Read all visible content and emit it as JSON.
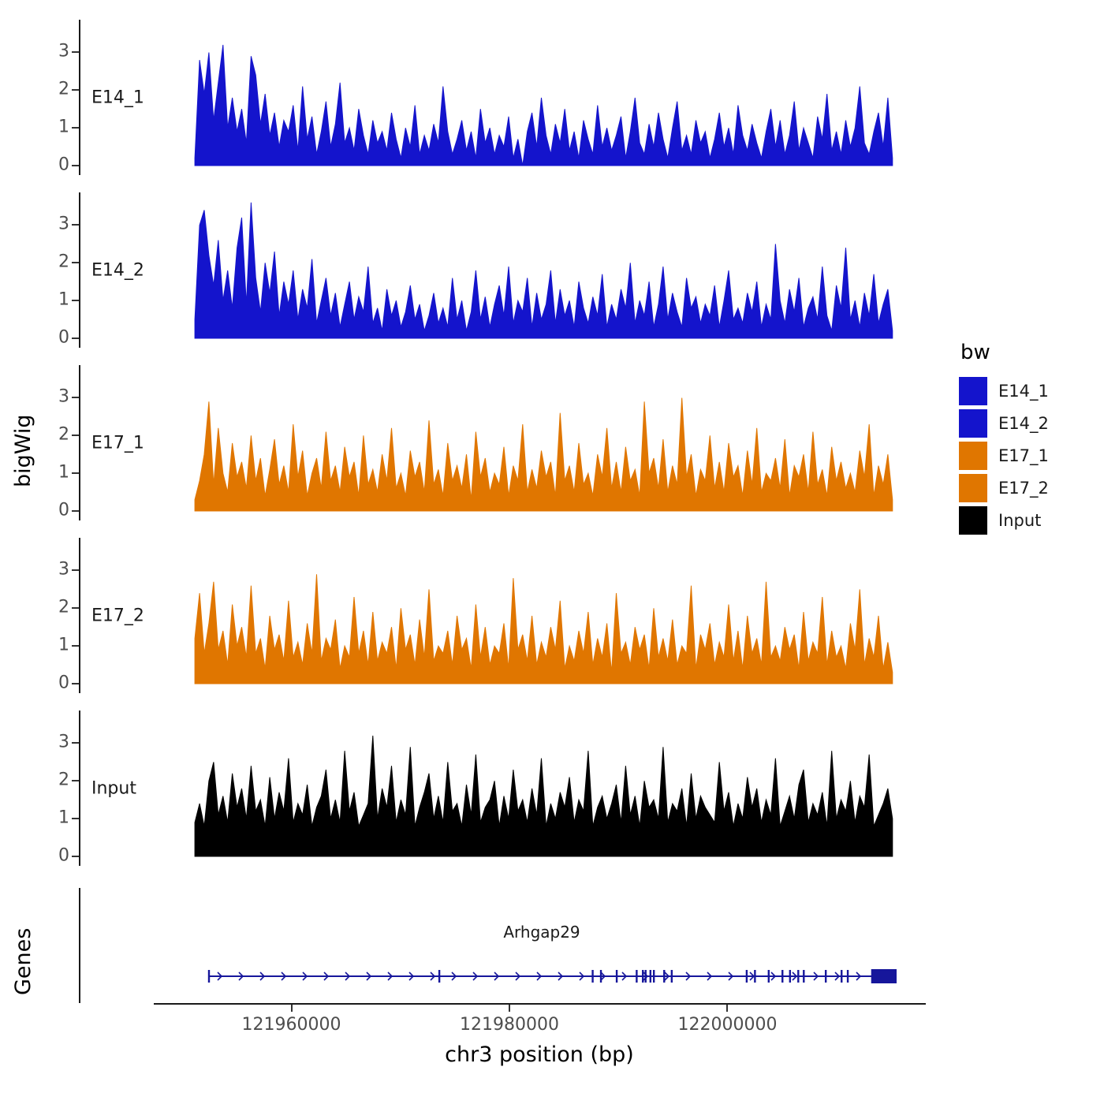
{
  "figure": {
    "y_axis_title_tracks": "bigWig",
    "y_axis_title_genes": "Genes",
    "x_axis_title": "chr3 position (bp)"
  },
  "colors": {
    "blue": "#1414CC",
    "orange": "#E07600",
    "black": "#000000",
    "gene": "#16169B",
    "axis_text": "#4d4d4d"
  },
  "chart_data": {
    "type": "area",
    "title": "",
    "subtitle": "",
    "region": {
      "chrom": "chr3",
      "start": 121951000,
      "end": 122015000
    },
    "x_ticks": [
      121960000,
      121980000,
      122000000
    ],
    "y_ticks": [
      0,
      1,
      2,
      3
    ],
    "ylim": [
      0,
      3.7
    ],
    "grid": false,
    "legend": {
      "title": "bw",
      "position": "right",
      "entries": [
        {
          "label": "E14_1",
          "color": "#1414CC"
        },
        {
          "label": "E14_2",
          "color": "#1414CC"
        },
        {
          "label": "E17_1",
          "color": "#E07600"
        },
        {
          "label": "E17_2",
          "color": "#E07600"
        },
        {
          "label": "Input",
          "color": "#000000"
        }
      ]
    },
    "tracks": [
      {
        "label": "E14_1",
        "color": "#1414CC",
        "values": [
          0.2,
          2.8,
          1.9,
          3.0,
          1.2,
          2.2,
          3.2,
          1.0,
          1.8,
          0.9,
          1.5,
          0.6,
          2.9,
          2.4,
          1.1,
          1.9,
          0.8,
          1.4,
          0.5,
          1.2,
          0.9,
          1.6,
          0.4,
          2.1,
          0.7,
          1.3,
          0.3,
          0.9,
          1.7,
          0.5,
          1.1,
          2.2,
          0.6,
          1.0,
          0.4,
          1.5,
          0.8,
          0.3,
          1.2,
          0.6,
          0.9,
          0.4,
          1.4,
          0.7,
          0.2,
          1.0,
          0.5,
          1.6,
          0.3,
          0.8,
          0.4,
          1.1,
          0.6,
          2.1,
          0.9,
          0.3,
          0.7,
          1.2,
          0.4,
          0.9,
          0.2,
          1.5,
          0.6,
          1.0,
          0.3,
          0.8,
          0.5,
          1.3,
          0.2,
          0.7,
          0.0,
          0.9,
          1.4,
          0.5,
          1.8,
          0.8,
          0.3,
          1.1,
          0.6,
          1.5,
          0.4,
          0.9,
          0.2,
          1.2,
          0.7,
          0.3,
          1.6,
          0.5,
          1.0,
          0.4,
          0.8,
          1.3,
          0.2,
          0.9,
          1.8,
          0.6,
          0.3,
          1.1,
          0.5,
          1.4,
          0.7,
          0.2,
          1.0,
          1.7,
          0.4,
          0.8,
          0.3,
          1.2,
          0.6,
          0.9,
          0.2,
          0.7,
          1.4,
          0.5,
          1.0,
          0.3,
          1.6,
          0.8,
          0.4,
          1.1,
          0.6,
          0.2,
          0.9,
          1.5,
          0.5,
          1.2,
          0.3,
          0.8,
          1.7,
          0.4,
          1.0,
          0.6,
          0.2,
          1.3,
          0.7,
          1.9,
          0.4,
          0.9,
          0.3,
          1.2,
          0.5,
          1.0,
          2.1,
          0.6,
          0.3,
          0.9,
          1.4,
          0.5,
          1.8,
          0.2
        ]
      },
      {
        "label": "E14_2",
        "color": "#1414CC",
        "values": [
          0.5,
          3.0,
          3.4,
          2.2,
          1.4,
          2.6,
          1.0,
          1.8,
          0.8,
          2.4,
          3.2,
          0.9,
          3.6,
          1.6,
          0.7,
          2.0,
          1.2,
          2.3,
          0.6,
          1.5,
          0.9,
          1.8,
          0.5,
          1.3,
          0.8,
          2.1,
          0.4,
          1.0,
          1.6,
          0.6,
          1.2,
          0.3,
          0.9,
          1.5,
          0.5,
          1.1,
          0.7,
          1.9,
          0.4,
          0.8,
          0.2,
          1.3,
          0.6,
          1.0,
          0.3,
          0.7,
          1.4,
          0.5,
          0.9,
          0.2,
          0.6,
          1.2,
          0.4,
          0.8,
          0.3,
          1.6,
          0.5,
          1.0,
          0.2,
          0.7,
          1.8,
          0.5,
          1.1,
          0.3,
          0.9,
          1.4,
          0.6,
          1.9,
          0.4,
          1.0,
          0.7,
          1.6,
          0.3,
          1.2,
          0.5,
          0.9,
          1.8,
          0.4,
          1.3,
          0.6,
          1.0,
          0.3,
          1.5,
          0.8,
          0.4,
          1.1,
          0.6,
          1.7,
          0.3,
          0.9,
          0.5,
          1.3,
          0.8,
          2.0,
          0.4,
          1.0,
          0.6,
          1.5,
          0.3,
          0.9,
          1.9,
          0.5,
          1.2,
          0.7,
          0.3,
          1.6,
          0.8,
          1.1,
          0.4,
          0.9,
          0.6,
          1.4,
          0.3,
          1.0,
          1.8,
          0.5,
          0.8,
          0.4,
          1.2,
          0.7,
          1.5,
          0.3,
          0.9,
          0.5,
          2.5,
          1.0,
          0.4,
          1.3,
          0.7,
          1.6,
          0.3,
          0.8,
          1.1,
          0.5,
          1.9,
          0.6,
          0.2,
          1.4,
          0.8,
          2.4,
          0.5,
          1.0,
          0.3,
          1.2,
          0.6,
          1.7,
          0.4,
          0.9,
          1.3,
          0.2
        ]
      },
      {
        "label": "E17_1",
        "color": "#E07600",
        "values": [
          0.3,
          0.8,
          1.5,
          2.9,
          0.7,
          2.2,
          1.0,
          0.5,
          1.8,
          0.9,
          1.3,
          0.6,
          2.0,
          0.8,
          1.4,
          0.4,
          1.1,
          1.9,
          0.7,
          1.2,
          0.5,
          2.3,
          0.9,
          1.6,
          0.4,
          1.0,
          1.4,
          0.6,
          2.1,
          0.8,
          1.2,
          0.5,
          1.7,
          0.9,
          1.3,
          0.4,
          2.0,
          0.7,
          1.1,
          0.5,
          1.5,
          0.8,
          2.2,
          0.6,
          1.0,
          0.4,
          1.6,
          0.9,
          1.3,
          0.5,
          2.4,
          0.7,
          1.1,
          0.4,
          1.8,
          0.8,
          1.2,
          0.6,
          1.5,
          0.3,
          2.1,
          0.9,
          1.4,
          0.5,
          1.0,
          0.7,
          1.7,
          0.4,
          1.2,
          0.8,
          2.3,
          0.5,
          1.1,
          0.6,
          1.6,
          0.9,
          1.3,
          0.4,
          2.6,
          0.8,
          1.2,
          0.5,
          1.8,
          0.7,
          1.0,
          0.4,
          1.5,
          0.9,
          2.2,
          0.6,
          1.3,
          0.5,
          1.7,
          0.8,
          1.1,
          0.4,
          2.9,
          1.0,
          1.4,
          0.6,
          1.9,
          0.5,
          1.2,
          0.7,
          3.0,
          0.9,
          1.5,
          0.4,
          1.1,
          0.8,
          2.0,
          0.6,
          1.3,
          0.5,
          1.8,
          0.9,
          1.2,
          0.4,
          1.6,
          0.7,
          2.2,
          0.5,
          1.0,
          0.8,
          1.4,
          0.6,
          1.9,
          0.4,
          1.2,
          0.9,
          1.5,
          0.5,
          2.1,
          0.7,
          1.1,
          0.4,
          1.7,
          0.8,
          1.3,
          0.6,
          1.0,
          0.5,
          1.6,
          0.9,
          2.3,
          0.4,
          1.2,
          0.7,
          1.5,
          0.3
        ]
      },
      {
        "label": "E17_2",
        "color": "#E07600",
        "values": [
          1.2,
          2.4,
          0.8,
          1.6,
          2.7,
          0.9,
          1.4,
          0.5,
          2.1,
          1.0,
          1.5,
          0.7,
          2.6,
          0.8,
          1.2,
          0.4,
          1.8,
          0.9,
          1.3,
          0.6,
          2.2,
          0.7,
          1.1,
          0.5,
          1.6,
          0.8,
          2.9,
          0.6,
          1.2,
          0.9,
          1.7,
          0.4,
          1.0,
          0.7,
          2.3,
          0.8,
          1.4,
          0.5,
          1.9,
          0.6,
          1.1,
          0.8,
          1.5,
          0.4,
          2.0,
          0.9,
          1.3,
          0.5,
          1.7,
          0.7,
          2.5,
          0.6,
          1.0,
          0.8,
          1.4,
          0.5,
          1.8,
          0.9,
          1.2,
          0.4,
          2.1,
          0.7,
          1.5,
          0.5,
          1.0,
          0.8,
          1.6,
          0.4,
          2.8,
          0.9,
          1.3,
          0.6,
          1.8,
          0.5,
          1.1,
          0.7,
          1.5,
          0.9,
          2.2,
          0.4,
          1.0,
          0.6,
          1.4,
          0.8,
          1.9,
          0.5,
          1.2,
          0.7,
          1.6,
          0.3,
          2.4,
          0.8,
          1.1,
          0.5,
          1.5,
          0.9,
          1.3,
          0.4,
          2.0,
          0.7,
          1.2,
          0.6,
          1.7,
          0.5,
          1.0,
          0.8,
          2.6,
          0.4,
          1.3,
          0.9,
          1.6,
          0.5,
          1.1,
          0.7,
          2.1,
          0.6,
          1.4,
          0.4,
          1.8,
          0.8,
          1.2,
          0.5,
          2.7,
          0.7,
          1.0,
          0.6,
          1.5,
          0.9,
          1.3,
          0.4,
          1.9,
          0.6,
          1.1,
          0.8,
          2.3,
          0.5,
          1.4,
          0.7,
          1.0,
          0.4,
          1.6,
          0.9,
          2.5,
          0.5,
          1.2,
          0.7,
          1.8,
          0.4,
          1.1,
          0.3
        ]
      },
      {
        "label": "Input",
        "color": "#000000",
        "values": [
          0.9,
          1.4,
          0.8,
          2.0,
          2.5,
          1.1,
          1.6,
          0.9,
          2.2,
          1.3,
          1.8,
          1.0,
          2.4,
          1.2,
          1.5,
          0.8,
          2.1,
          1.0,
          1.7,
          1.2,
          2.6,
          0.9,
          1.4,
          1.1,
          1.9,
          0.8,
          1.3,
          1.6,
          2.3,
          1.0,
          1.5,
          0.9,
          2.8,
          1.2,
          1.7,
          0.8,
          1.1,
          1.4,
          3.2,
          1.0,
          1.8,
          1.3,
          2.4,
          0.9,
          1.5,
          1.1,
          2.9,
          0.8,
          1.3,
          1.7,
          2.2,
          1.0,
          1.6,
          0.9,
          2.5,
          1.2,
          1.4,
          0.8,
          1.9,
          1.1,
          2.7,
          0.9,
          1.3,
          1.5,
          2.0,
          0.8,
          1.6,
          1.0,
          2.3,
          1.2,
          1.5,
          0.9,
          1.8,
          1.1,
          2.6,
          0.8,
          1.4,
          1.0,
          1.7,
          1.3,
          2.1,
          0.9,
          1.5,
          1.2,
          2.8,
          0.8,
          1.3,
          1.6,
          1.0,
          1.4,
          1.9,
          0.9,
          2.4,
          1.1,
          1.6,
          0.8,
          2.0,
          1.3,
          1.5,
          1.0,
          2.9,
          0.9,
          1.4,
          1.2,
          1.8,
          0.8,
          2.2,
          1.0,
          1.6,
          1.3,
          1.1,
          0.9,
          2.5,
          1.2,
          1.7,
          0.8,
          1.4,
          1.0,
          2.1,
          1.3,
          1.8,
          0.9,
          1.5,
          1.1,
          2.6,
          0.8,
          1.2,
          1.6,
          1.0,
          1.9,
          2.3,
          0.9,
          1.4,
          1.1,
          1.7,
          0.8,
          2.8,
          1.0,
          1.5,
          1.2,
          2.0,
          0.9,
          1.6,
          1.3,
          2.7,
          0.8,
          1.1,
          1.4,
          1.8,
          1.0
        ]
      }
    ],
    "gene": {
      "name": "Arhgap29",
      "strand": "+",
      "exon_fracs": [
        0.0,
        0.335,
        0.558,
        0.57,
        0.593,
        0.622,
        0.631,
        0.635,
        0.642,
        0.647,
        0.662,
        0.673,
        0.782,
        0.794,
        0.814,
        0.834,
        0.845,
        0.857,
        0.865,
        0.897,
        0.92,
        0.929
      ],
      "end_box": [
        0.963,
        1.0
      ]
    }
  }
}
